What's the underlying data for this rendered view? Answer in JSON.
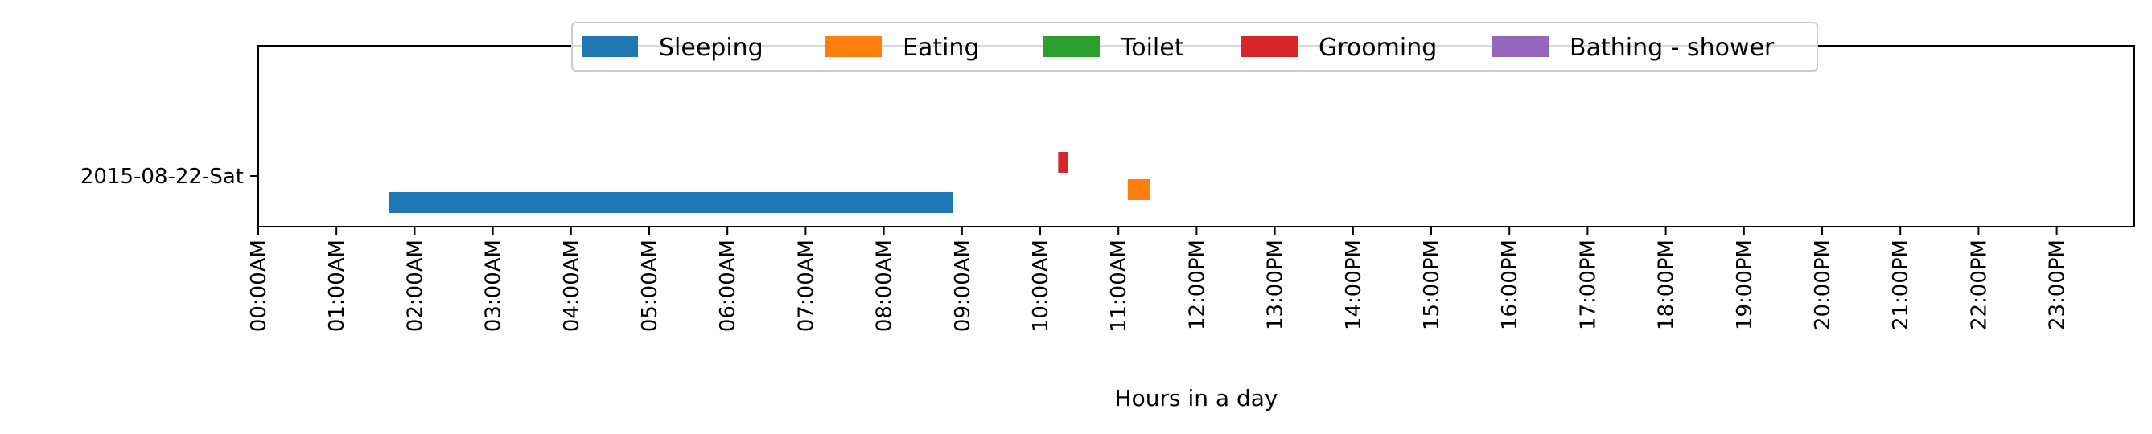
{
  "chart_data": {
    "type": "timeline",
    "xlabel": "Hours in a day",
    "x_unit": "hours",
    "xlim": [
      0,
      24
    ],
    "x_ticks": [
      "00:00AM",
      "01:00AM",
      "02:00AM",
      "03:00AM",
      "04:00AM",
      "05:00AM",
      "06:00AM",
      "07:00AM",
      "08:00AM",
      "09:00AM",
      "10:00AM",
      "11:00AM",
      "12:00PM",
      "13:00PM",
      "14:00PM",
      "15:00PM",
      "16:00PM",
      "17:00PM",
      "18:00PM",
      "19:00PM",
      "20:00PM",
      "21:00PM",
      "22:00PM",
      "23:00PM"
    ],
    "y_categories": [
      "2015-08-22-Sat"
    ],
    "legend_position": "top-center",
    "series": [
      {
        "name": "Sleeping",
        "color": "#1f77b4",
        "offset": -0.33,
        "intervals": [
          {
            "day": "2015-08-22-Sat",
            "start": 1.67,
            "end": 8.88
          }
        ]
      },
      {
        "name": "Eating",
        "color": "#ff7f0e",
        "offset": -0.17,
        "intervals": [
          {
            "day": "2015-08-22-Sat",
            "start": 11.12,
            "end": 11.4
          }
        ]
      },
      {
        "name": "Toilet",
        "color": "#2ca02c",
        "offset": 0,
        "intervals": []
      },
      {
        "name": "Grooming",
        "color": "#d62728",
        "offset": 0.17,
        "intervals": [
          {
            "day": "2015-08-22-Sat",
            "start": 10.23,
            "end": 10.35
          }
        ]
      },
      {
        "name": "Bathing - shower",
        "color": "#9467bd",
        "offset": 0.33,
        "intervals": []
      }
    ]
  }
}
